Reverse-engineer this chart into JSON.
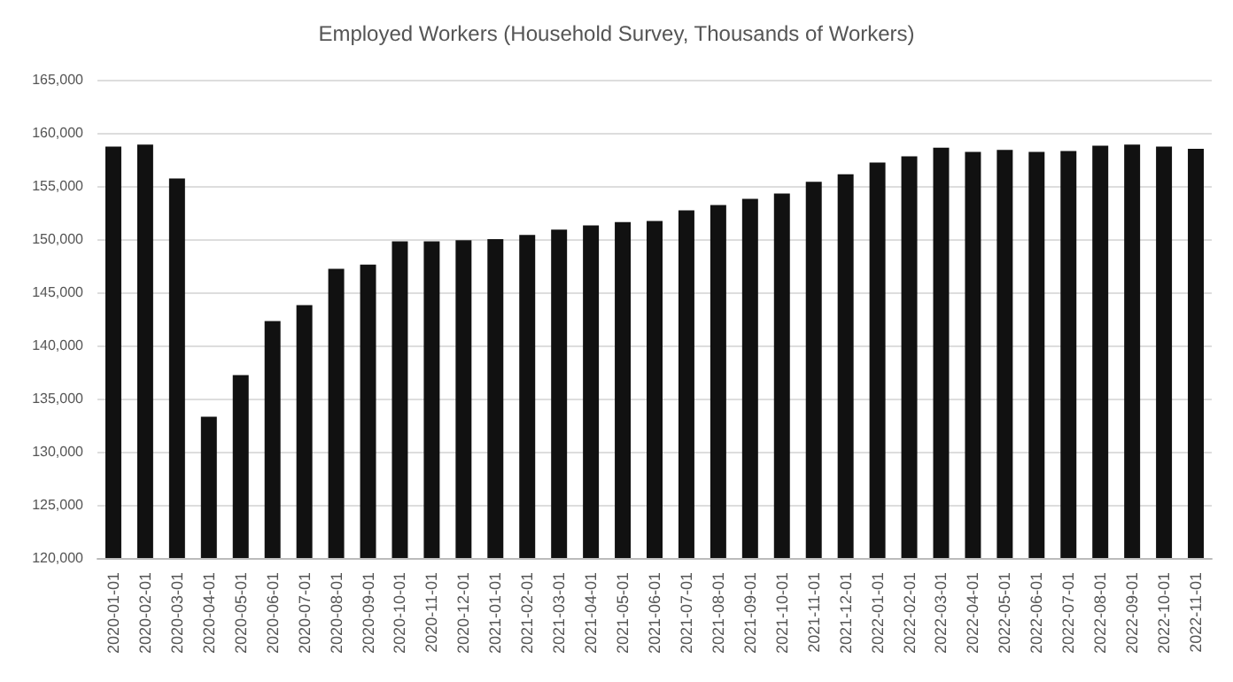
{
  "chart_data": {
    "type": "bar",
    "title": "Employed Workers (Household Survey, Thousands of Workers)",
    "categories": [
      "2020-01-01",
      "2020-02-01",
      "2020-03-01",
      "2020-04-01",
      "2020-05-01",
      "2020-06-01",
      "2020-07-01",
      "2020-08-01",
      "2020-09-01",
      "2020-10-01",
      "2020-11-01",
      "2020-12-01",
      "2021-01-01",
      "2021-02-01",
      "2021-03-01",
      "2021-04-01",
      "2021-05-01",
      "2021-06-01",
      "2021-07-01",
      "2021-08-01",
      "2021-09-01",
      "2021-10-01",
      "2021-11-01",
      "2021-12-01",
      "2022-01-01",
      "2022-02-01",
      "2022-03-01",
      "2022-04-01",
      "2022-05-01",
      "2022-06-01",
      "2022-07-01",
      "2022-08-01",
      "2022-09-01",
      "2022-10-01",
      "2022-11-01"
    ],
    "values": [
      158700,
      158900,
      155700,
      133300,
      137200,
      142300,
      143800,
      147200,
      147600,
      149800,
      149800,
      149900,
      150000,
      150400,
      150900,
      151300,
      151600,
      151700,
      152700,
      153200,
      153800,
      154300,
      155400,
      156100,
      157200,
      157800,
      158600,
      158200,
      158400,
      158200,
      158300,
      158800,
      158900,
      158700,
      158500
    ],
    "color": "#111111",
    "ylim": [
      120000,
      165000
    ],
    "yticks": [
      {
        "value": 120000,
        "label": "120,000"
      },
      {
        "value": 125000,
        "label": "125,000"
      },
      {
        "value": 130000,
        "label": "130,000"
      },
      {
        "value": 135000,
        "label": "135,000"
      },
      {
        "value": 140000,
        "label": "140,000"
      },
      {
        "value": 145000,
        "label": "145,000"
      },
      {
        "value": 150000,
        "label": "150,000"
      },
      {
        "value": 155000,
        "label": "155,000"
      },
      {
        "value": 160000,
        "label": "160,000"
      },
      {
        "value": 165000,
        "label": "165,000"
      }
    ],
    "grid": "y"
  }
}
